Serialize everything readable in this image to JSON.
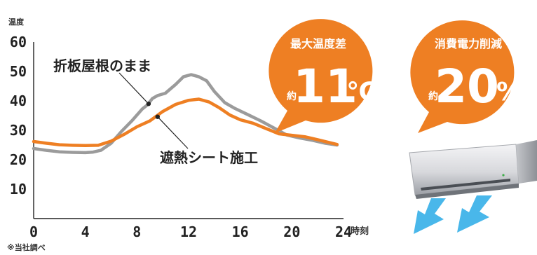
{
  "chart_data": {
    "type": "line",
    "ylabel": "温度",
    "xlabel": "時刻",
    "xlim": [
      0,
      24
    ],
    "ylim": [
      0,
      60
    ],
    "x_ticks": [
      "0",
      "4",
      "8",
      "12",
      "16",
      "20",
      "24"
    ],
    "y_ticks": [
      "10",
      "20",
      "30",
      "40",
      "50",
      "60"
    ],
    "grid": false,
    "series": [
      {
        "name": "折板屋根のまま",
        "color": "#9b9b9b",
        "points": [
          [
            0,
            23.8
          ],
          [
            1,
            23.2
          ],
          [
            2,
            22.7
          ],
          [
            3,
            22.5
          ],
          [
            4,
            22.4
          ],
          [
            4.6,
            22.6
          ],
          [
            5.2,
            23.2
          ],
          [
            6,
            25.6
          ],
          [
            6.8,
            29.6
          ],
          [
            7.6,
            33.2
          ],
          [
            8.4,
            37.2
          ],
          [
            8.8,
            38.6
          ],
          [
            9.2,
            40.8
          ],
          [
            9.6,
            41.8
          ],
          [
            10.2,
            42.6
          ],
          [
            11,
            45.6
          ],
          [
            11.6,
            48.2
          ],
          [
            12.2,
            48.9
          ],
          [
            12.8,
            48.2
          ],
          [
            13.4,
            46.8
          ],
          [
            14,
            43.2
          ],
          [
            14.8,
            39.4
          ],
          [
            15.6,
            37.4
          ],
          [
            16.6,
            35.3
          ],
          [
            17.6,
            33.2
          ],
          [
            18.6,
            30.8
          ],
          [
            19.6,
            28.4
          ],
          [
            20.6,
            27.4
          ],
          [
            21.6,
            26.6
          ],
          [
            22.6,
            25.6
          ],
          [
            23.5,
            25
          ]
        ]
      },
      {
        "name": "遮熱シート施工",
        "color": "#ee7f23",
        "points": [
          [
            0,
            26.2
          ],
          [
            1,
            25.6
          ],
          [
            2,
            25.1
          ],
          [
            3,
            24.9
          ],
          [
            4,
            24.8
          ],
          [
            5,
            24.9
          ],
          [
            6,
            26.3
          ],
          [
            7,
            28.6
          ],
          [
            8,
            31.2
          ],
          [
            9,
            33.2
          ],
          [
            10,
            36.4
          ],
          [
            11,
            38.8
          ],
          [
            12,
            40.2
          ],
          [
            12.8,
            40.6
          ],
          [
            13.6,
            39.6
          ],
          [
            14.4,
            37.6
          ],
          [
            15.2,
            35.2
          ],
          [
            16,
            33.6
          ],
          [
            17,
            32.4
          ],
          [
            18,
            30.6
          ],
          [
            19,
            28.8
          ],
          [
            20,
            28.3
          ],
          [
            21,
            27.8
          ],
          [
            22,
            26.8
          ],
          [
            23.5,
            25.2
          ]
        ]
      }
    ],
    "annotations": {
      "gray_label": "折板屋根のまま",
      "orange_label": "遮熱シート施工",
      "gray_marker": [
        8.9,
        39
      ],
      "orange_marker": [
        9.6,
        34.6
      ]
    },
    "note": "※当社調べ"
  },
  "badges": [
    {
      "title": "最大温度差",
      "prefix": "約",
      "value": "11",
      "unit": "℃",
      "color": "#ee7f23"
    },
    {
      "title": "消費電力削減",
      "prefix": "約",
      "value": "20",
      "unit": "%",
      "color": "#ee7f23"
    }
  ],
  "icons": {
    "air_conditioner": "air-conditioner-icon",
    "airflow": "airflow-arrow-icon"
  },
  "colors": {
    "accent": "#ee7f23",
    "gray_line": "#9b9b9b",
    "airflow": "#49b7ea"
  }
}
